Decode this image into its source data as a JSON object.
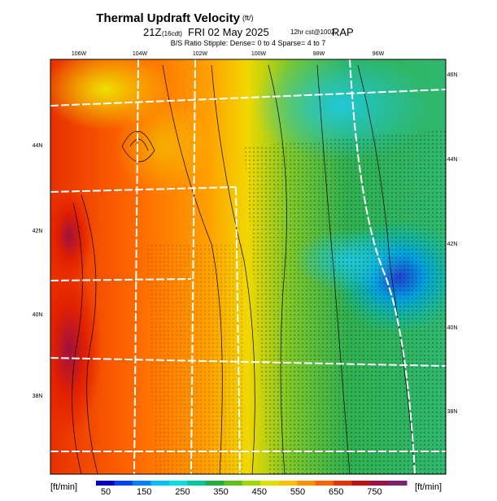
{
  "header": {
    "title": "Thermal Updraft Velocity",
    "title_unit": "(ft/)",
    "line2": [
      "21Z",
      "(16cdt)",
      "FRI 02 May 2025",
      "12hr cst@1002,",
      "RAP"
    ],
    "line3": "B/S Ratio Stipple: Dense= 0 to 4  Sparse= 4 to 7"
  },
  "map": {
    "lon_labels": [
      "106W",
      "104W",
      "102W",
      "100W",
      "98W",
      "96W"
    ],
    "lat_labels_left": [
      "44N",
      "42N",
      "40N",
      "38N"
    ],
    "lat_labels_right": [
      "46N",
      "44N",
      "42N",
      "40N",
      "38N"
    ]
  },
  "colorbar": {
    "unit_left": "[ft/min]",
    "unit_right": "[ft/min]",
    "ticks": [
      "50",
      "150",
      "250",
      "350",
      "450",
      "550",
      "650",
      "750"
    ]
  }
}
